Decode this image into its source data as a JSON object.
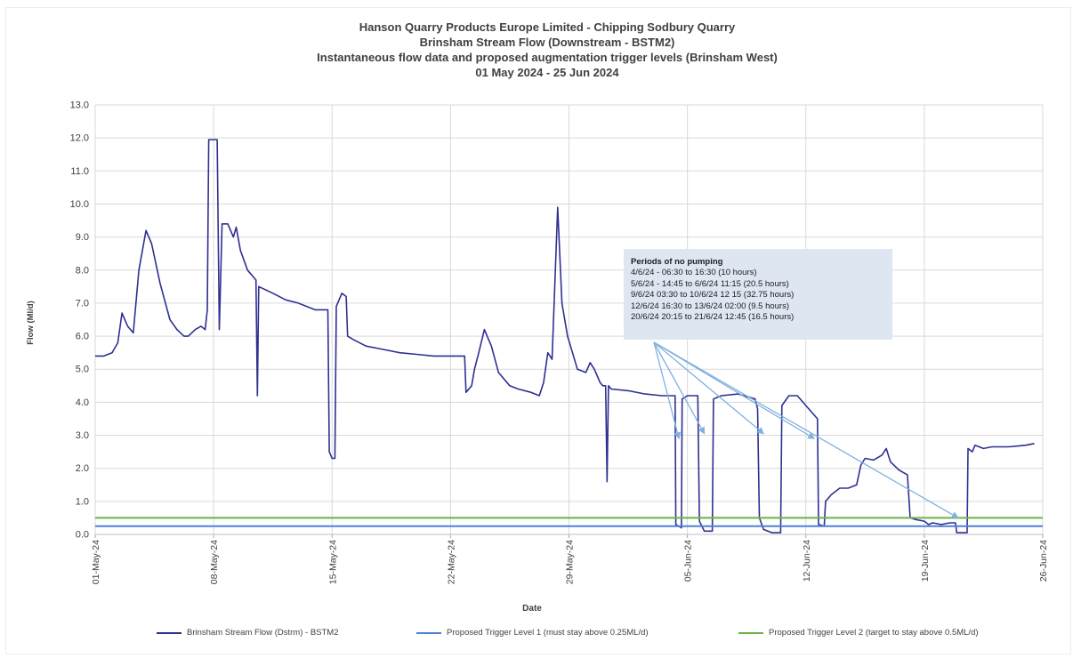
{
  "chart_data": {
    "type": "line",
    "title_lines": [
      "Hanson Quarry Products Europe Limited - Chipping Sodbury Quarry",
      "Brinsham Stream Flow (Downstream - BSTM2)",
      "Instantaneous flow data and proposed augmentation trigger levels (Brinsham West)",
      "01 May 2024 - 25 Jun 2024"
    ],
    "xlabel": "Date",
    "ylabel": "Flow (Ml/d)",
    "ylim": [
      0.0,
      13.0
    ],
    "y_ticks": [
      "0.0",
      "1.0",
      "2.0",
      "3.0",
      "4.0",
      "5.0",
      "6.0",
      "7.0",
      "8.0",
      "9.0",
      "10.0",
      "11.0",
      "12.0",
      "13.0"
    ],
    "xlim": [
      "2024-05-01",
      "2024-06-26"
    ],
    "x_ticks": [
      {
        "date": "2024-05-01",
        "label": "01-May-24"
      },
      {
        "date": "2024-05-08",
        "label": "08-May-24"
      },
      {
        "date": "2024-05-15",
        "label": "15-May-24"
      },
      {
        "date": "2024-05-22",
        "label": "22-May-24"
      },
      {
        "date": "2024-05-29",
        "label": "29-May-24"
      },
      {
        "date": "2024-06-05",
        "label": "05-Jun-24"
      },
      {
        "date": "2024-06-12",
        "label": "12-Jun-24"
      },
      {
        "date": "2024-06-19",
        "label": "19-Jun-24"
      },
      {
        "date": "2024-06-26",
        "label": "26-Jun-24"
      }
    ],
    "grid": true,
    "legend_position": "bottom",
    "series": [
      {
        "name": "Brinsham Stream Flow (Dstrm) - BSTM2",
        "color": "#2e3092",
        "points": [
          [
            "2024-05-01 00:00",
            5.4
          ],
          [
            "2024-05-01 12:00",
            5.4
          ],
          [
            "2024-05-02 00:00",
            5.5
          ],
          [
            "2024-05-02 08:00",
            5.8
          ],
          [
            "2024-05-02 14:00",
            6.7
          ],
          [
            "2024-05-02 22:00",
            6.3
          ],
          [
            "2024-05-03 06:00",
            6.1
          ],
          [
            "2024-05-03 14:00",
            8.0
          ],
          [
            "2024-05-04 00:00",
            9.2
          ],
          [
            "2024-05-04 08:00",
            8.8
          ],
          [
            "2024-05-04 20:00",
            7.6
          ],
          [
            "2024-05-05 10:00",
            6.5
          ],
          [
            "2024-05-05 20:00",
            6.2
          ],
          [
            "2024-05-06 06:00",
            6.0
          ],
          [
            "2024-05-06 12:00",
            6.0
          ],
          [
            "2024-05-06 22:00",
            6.2
          ],
          [
            "2024-05-07 06:00",
            6.3
          ],
          [
            "2024-05-07 12:00",
            6.2
          ],
          [
            "2024-05-07 15:00",
            6.8
          ],
          [
            "2024-05-07 17:00",
            11.95
          ],
          [
            "2024-05-08 05:00",
            11.95
          ],
          [
            "2024-05-08 08:00",
            6.2
          ],
          [
            "2024-05-08 12:00",
            9.4
          ],
          [
            "2024-05-08 20:00",
            9.4
          ],
          [
            "2024-05-09 04:00",
            9.0
          ],
          [
            "2024-05-09 08:00",
            9.3
          ],
          [
            "2024-05-09 14:00",
            8.6
          ],
          [
            "2024-05-10 00:00",
            8.0
          ],
          [
            "2024-05-10 12:00",
            7.7
          ],
          [
            "2024-05-10 14:00",
            4.2
          ],
          [
            "2024-05-10 16:00",
            7.5
          ],
          [
            "2024-05-11 12:00",
            7.3
          ],
          [
            "2024-05-12 06:00",
            7.1
          ],
          [
            "2024-05-13 00:00",
            7.0
          ],
          [
            "2024-05-14 00:00",
            6.8
          ],
          [
            "2024-05-14 18:00",
            6.8
          ],
          [
            "2024-05-14 20:00",
            2.5
          ],
          [
            "2024-05-15 00:00",
            2.3
          ],
          [
            "2024-05-15 04:00",
            2.3
          ],
          [
            "2024-05-15 06:00",
            6.9
          ],
          [
            "2024-05-15 14:00",
            7.3
          ],
          [
            "2024-05-15 20:00",
            7.2
          ],
          [
            "2024-05-15 22:00",
            6.0
          ],
          [
            "2024-05-16 06:00",
            5.9
          ],
          [
            "2024-05-17 00:00",
            5.7
          ],
          [
            "2024-05-18 00:00",
            5.6
          ],
          [
            "2024-05-19 00:00",
            5.5
          ],
          [
            "2024-05-20 00:00",
            5.45
          ],
          [
            "2024-05-21 00:00",
            5.4
          ],
          [
            "2024-05-22 00:00",
            5.4
          ],
          [
            "2024-05-22 20:00",
            5.4
          ],
          [
            "2024-05-22 22:00",
            4.3
          ],
          [
            "2024-05-23 06:00",
            4.5
          ],
          [
            "2024-05-23 10:00",
            5.0
          ],
          [
            "2024-05-23 16:00",
            5.5
          ],
          [
            "2024-05-24 00:00",
            6.2
          ],
          [
            "2024-05-24 10:00",
            5.7
          ],
          [
            "2024-05-24 20:00",
            4.9
          ],
          [
            "2024-05-25 12:00",
            4.5
          ],
          [
            "2024-05-26 00:00",
            4.4
          ],
          [
            "2024-05-26 18:00",
            4.3
          ],
          [
            "2024-05-27 06:00",
            4.2
          ],
          [
            "2024-05-27 12:00",
            4.6
          ],
          [
            "2024-05-27 18:00",
            5.5
          ],
          [
            "2024-05-28 00:00",
            5.3
          ],
          [
            "2024-05-28 08:00",
            9.9
          ],
          [
            "2024-05-28 14:00",
            7.0
          ],
          [
            "2024-05-28 22:00",
            6.0
          ],
          [
            "2024-05-29 12:00",
            5.0
          ],
          [
            "2024-05-30 00:00",
            4.9
          ],
          [
            "2024-05-30 06:00",
            5.2
          ],
          [
            "2024-05-30 12:00",
            5.0
          ],
          [
            "2024-05-30 20:00",
            4.6
          ],
          [
            "2024-05-31 00:00",
            4.5
          ],
          [
            "2024-05-31 04:00",
            4.5
          ],
          [
            "2024-05-31 06:00",
            1.6
          ],
          [
            "2024-05-31 08:00",
            4.5
          ],
          [
            "2024-05-31 12:00",
            4.4
          ],
          [
            "2024-06-01 12:00",
            4.35
          ],
          [
            "2024-06-02 12:00",
            4.25
          ],
          [
            "2024-06-03 12:00",
            4.2
          ],
          [
            "2024-06-04 06:30",
            4.2
          ],
          [
            "2024-06-04 07:30",
            0.3
          ],
          [
            "2024-06-04 15:30",
            0.2
          ],
          [
            "2024-06-04 16:30",
            4.1
          ],
          [
            "2024-06-05 00:00",
            4.2
          ],
          [
            "2024-06-05 14:45",
            4.2
          ],
          [
            "2024-06-05 17:00",
            0.4
          ],
          [
            "2024-06-06 00:00",
            0.1
          ],
          [
            "2024-06-06 11:15",
            0.1
          ],
          [
            "2024-06-06 13:00",
            4.1
          ],
          [
            "2024-06-07 00:00",
            4.2
          ],
          [
            "2024-06-08 00:00",
            4.25
          ],
          [
            "2024-06-09 00:00",
            4.1
          ],
          [
            "2024-06-09 03:30",
            3.8
          ],
          [
            "2024-06-09 06:00",
            0.5
          ],
          [
            "2024-06-09 12:00",
            0.15
          ],
          [
            "2024-06-10 00:00",
            0.05
          ],
          [
            "2024-06-10 12:15",
            0.05
          ],
          [
            "2024-06-10 14:00",
            3.9
          ],
          [
            "2024-06-11 00:00",
            4.2
          ],
          [
            "2024-06-11 12:00",
            4.2
          ],
          [
            "2024-06-12 00:00",
            3.9
          ],
          [
            "2024-06-12 16:30",
            3.5
          ],
          [
            "2024-06-12 18:00",
            0.3
          ],
          [
            "2024-06-13 02:00",
            0.25
          ],
          [
            "2024-06-13 04:00",
            1.0
          ],
          [
            "2024-06-13 12:00",
            1.2
          ],
          [
            "2024-06-14 00:00",
            1.4
          ],
          [
            "2024-06-14 12:00",
            1.4
          ],
          [
            "2024-06-15 00:00",
            1.5
          ],
          [
            "2024-06-15 06:00",
            2.1
          ],
          [
            "2024-06-15 12:00",
            2.3
          ],
          [
            "2024-06-16 00:00",
            2.25
          ],
          [
            "2024-06-16 12:00",
            2.4
          ],
          [
            "2024-06-16 18:00",
            2.6
          ],
          [
            "2024-06-17 00:00",
            2.2
          ],
          [
            "2024-06-17 12:00",
            1.95
          ],
          [
            "2024-06-18 00:00",
            1.8
          ],
          [
            "2024-06-18 04:00",
            0.5
          ],
          [
            "2024-06-18 12:00",
            0.45
          ],
          [
            "2024-06-19 00:00",
            0.4
          ],
          [
            "2024-06-19 06:00",
            0.3
          ],
          [
            "2024-06-19 12:00",
            0.35
          ],
          [
            "2024-06-20 00:00",
            0.3
          ],
          [
            "2024-06-20 12:00",
            0.35
          ],
          [
            "2024-06-20 20:15",
            0.35
          ],
          [
            "2024-06-20 22:00",
            0.05
          ],
          [
            "2024-06-21 12:45",
            0.05
          ],
          [
            "2024-06-21 14:00",
            2.6
          ],
          [
            "2024-06-21 20:00",
            2.5
          ],
          [
            "2024-06-22 00:00",
            2.7
          ],
          [
            "2024-06-22 12:00",
            2.6
          ],
          [
            "2024-06-23 00:00",
            2.65
          ],
          [
            "2024-06-24 00:00",
            2.65
          ],
          [
            "2024-06-25 00:00",
            2.7
          ],
          [
            "2024-06-25 12:00",
            2.75
          ]
        ]
      },
      {
        "name": "Proposed Trigger Level 1 (must stay above 0.25ML/d)",
        "color": "#4f81d6",
        "constant": 0.25
      },
      {
        "name": "Proposed Trigger Level 2 (target to stay above 0.5ML/d)",
        "color": "#6bb248",
        "constant": 0.5
      }
    ],
    "annotation": {
      "title": "Periods of no pumping",
      "lines": [
        "4/6/24 - 06:30 to  16:30 (10 hours)",
        "5/6/24 - 14:45 to 6/6/24 11:15 (20.5 hours)",
        "9/6/24 03:30 to 10/6/24 12 15 (32.75 hours)",
        "12/6/24 16:30 to 13/6/24 02:00 (9.5 hours)",
        "20/6/24 20:15 to 21/6/24 12:45 (16.5 hours)"
      ],
      "arrow_targets": [
        [
          "2024-06-04 12:00",
          2.9
        ],
        [
          "2024-06-06 00:00",
          3.05
        ],
        [
          "2024-06-09 12:00",
          3.05
        ],
        [
          "2024-06-12 12:00",
          2.9
        ],
        [
          "2024-06-21 00:00",
          0.5
        ]
      ],
      "arrow_color": "#7fb1de"
    }
  }
}
